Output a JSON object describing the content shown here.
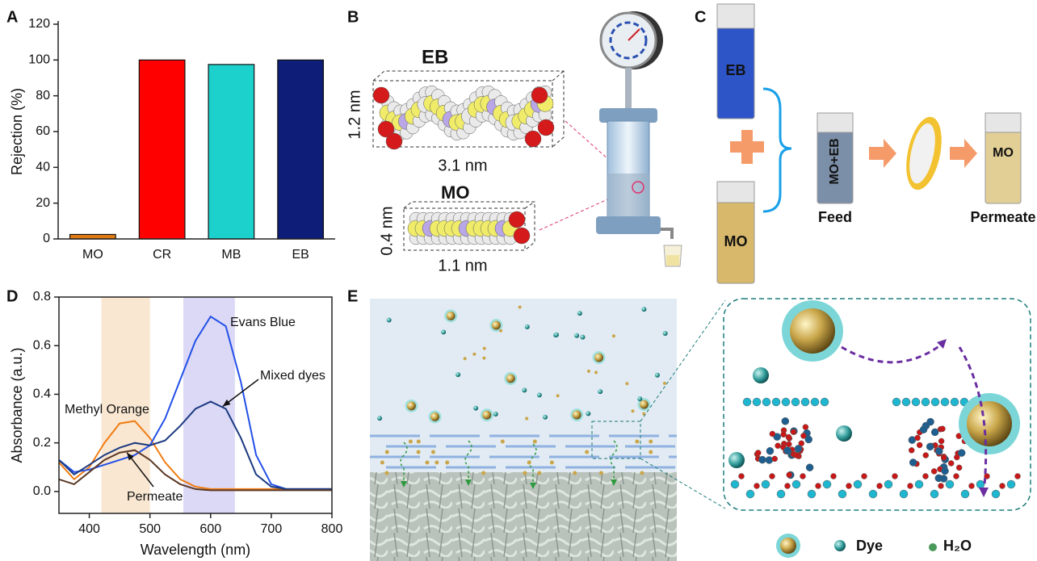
{
  "chart_data": [
    {
      "type": "bar",
      "categories": [
        "MO",
        "CR",
        "MB",
        "EB"
      ],
      "values": [
        2.5,
        100,
        97.5,
        100
      ],
      "colors": [
        "#e07b12",
        "#ff0000",
        "#1cd0cc",
        "#0e1e78"
      ],
      "y_label": "Rejection (%)",
      "ylim": [
        0,
        120
      ],
      "yticks": [
        0,
        20,
        40,
        60,
        80,
        100,
        120
      ]
    },
    {
      "type": "line",
      "x": [
        350,
        375,
        400,
        425,
        450,
        475,
        500,
        525,
        550,
        575,
        600,
        625,
        650,
        675,
        700,
        725,
        750,
        775,
        800
      ],
      "series": [
        {
          "name": "Methyl Orange",
          "color": "#f07d14",
          "values": [
            0.12,
            0.05,
            0.1,
            0.2,
            0.28,
            0.29,
            0.22,
            0.12,
            0.05,
            0.02,
            0.01,
            0.01,
            0.01,
            0.01,
            0.01,
            0.01,
            0.01,
            0.01,
            0.01
          ]
        },
        {
          "name": "Evans Blue",
          "color": "#2350e8",
          "values": [
            0.13,
            0.08,
            0.09,
            0.11,
            0.13,
            0.15,
            0.19,
            0.3,
            0.46,
            0.62,
            0.72,
            0.68,
            0.45,
            0.15,
            0.03,
            0.01,
            0.01,
            0.01,
            0.01
          ]
        },
        {
          "name": "Mixed dyes",
          "color": "#1b3a80",
          "values": [
            0.13,
            0.07,
            0.11,
            0.15,
            0.18,
            0.2,
            0.19,
            0.21,
            0.27,
            0.34,
            0.37,
            0.34,
            0.22,
            0.07,
            0.02,
            0.01,
            0.01,
            0.01,
            0.01
          ]
        },
        {
          "name": "Permeate",
          "color": "#5b3826",
          "values": [
            0.05,
            0.03,
            0.08,
            0.13,
            0.16,
            0.17,
            0.13,
            0.07,
            0.03,
            0.01,
            0.005,
            0.005,
            0.005,
            0.005,
            0.005,
            0.005,
            0.005,
            0.005,
            0.005
          ]
        }
      ],
      "bands": [
        {
          "xlim": [
            420,
            500
          ],
          "color": "#f9e7d2"
        },
        {
          "xlim": [
            555,
            640
          ],
          "color": "#dcd9f6"
        }
      ],
      "x_label": "Wavelength (nm)",
      "y_label": "Absorbance (a.u.)",
      "xlim": [
        350,
        800
      ],
      "xticks": [
        400,
        500,
        600,
        700,
        800
      ],
      "ylim": [
        -0.09,
        0.8
      ],
      "yticks": [
        {
          "value": 0,
          "label": "0.0"
        },
        0.2,
        0.4,
        0.6,
        0.8
      ]
    }
  ],
  "panel_labels": [
    "A",
    "B",
    "C",
    "D",
    "E"
  ],
  "panel_b": {
    "eb": "EB",
    "eb_height": "1.2 nm",
    "eb_length": "3.1 nm",
    "mo": "MO",
    "mo_height": "0.4 nm",
    "mo_length": "1.1 nm"
  },
  "panel_c": {
    "cuvette_eb": "EB",
    "cuvette_mo": "MO",
    "cuvette_feed": "MO+EB",
    "cuvette_permeate": "MO",
    "feed": "Feed",
    "permeate": "Permeate"
  },
  "panel_e": {
    "legend_dye": "Dye",
    "legend_water": "H₂O"
  }
}
